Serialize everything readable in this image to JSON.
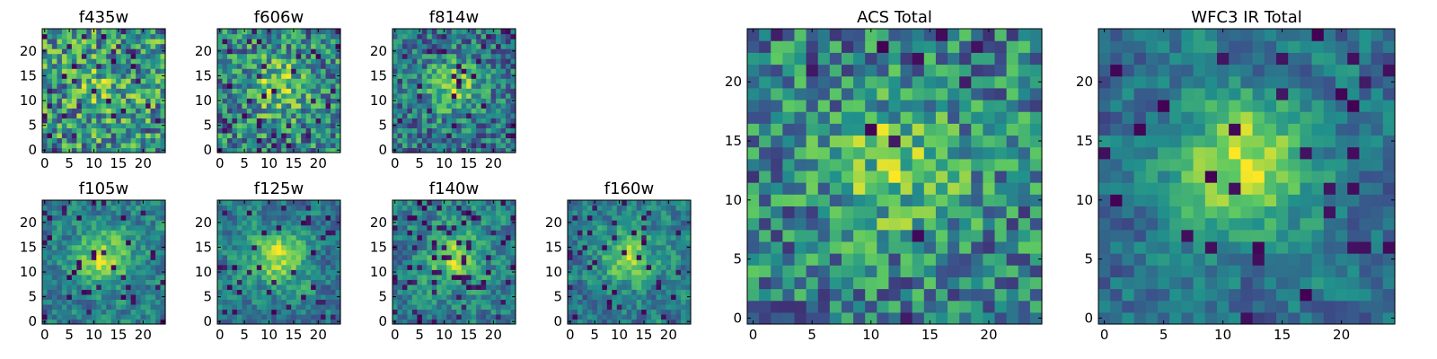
{
  "chart_data": [
    {
      "type": "heatmap",
      "title": "f435w",
      "xticks": [
        "0",
        "5",
        "10",
        "15",
        "20"
      ],
      "yticks": [
        "0",
        "5",
        "10",
        "15",
        "20"
      ],
      "xlim": [
        0,
        25
      ],
      "ylim": [
        0,
        25
      ],
      "grid_size": 25,
      "seed": 11,
      "blob": 0.15,
      "dark": 0.06,
      "smooth": 0
    },
    {
      "type": "heatmap",
      "title": "f606w",
      "xticks": [
        "0",
        "5",
        "10",
        "15",
        "20"
      ],
      "yticks": [
        "0",
        "5",
        "10",
        "15",
        "20"
      ],
      "xlim": [
        0,
        25
      ],
      "ylim": [
        0,
        25
      ],
      "grid_size": 25,
      "seed": 23,
      "blob": 0.35,
      "dark": 0.05,
      "smooth": 0
    },
    {
      "type": "heatmap",
      "title": "f814w",
      "xticks": [
        "0",
        "5",
        "10",
        "15",
        "20"
      ],
      "yticks": [
        "0",
        "5",
        "10",
        "15",
        "20"
      ],
      "xlim": [
        0,
        25
      ],
      "ylim": [
        0,
        25
      ],
      "grid_size": 25,
      "seed": 37,
      "blob": 0.5,
      "dark": 0.05,
      "smooth": 0
    },
    {
      "type": "heatmap",
      "title": "f105w",
      "xticks": [
        "0",
        "5",
        "10",
        "15",
        "20"
      ],
      "yticks": [
        "0",
        "5",
        "10",
        "15",
        "20"
      ],
      "xlim": [
        0,
        25
      ],
      "ylim": [
        0,
        25
      ],
      "grid_size": 25,
      "seed": 41,
      "blob": 0.55,
      "dark": 0.07,
      "smooth": 1
    },
    {
      "type": "heatmap",
      "title": "f125w",
      "xticks": [
        "0",
        "5",
        "10",
        "15",
        "20"
      ],
      "yticks": [
        "0",
        "5",
        "10",
        "15",
        "20"
      ],
      "xlim": [
        0,
        25
      ],
      "ylim": [
        0,
        25
      ],
      "grid_size": 25,
      "seed": 53,
      "blob": 0.55,
      "dark": 0.08,
      "smooth": 1
    },
    {
      "type": "heatmap",
      "title": "f140w",
      "xticks": [
        "0",
        "5",
        "10",
        "15",
        "20"
      ],
      "yticks": [
        "0",
        "5",
        "10",
        "15",
        "20"
      ],
      "xlim": [
        0,
        25
      ],
      "ylim": [
        0,
        25
      ],
      "grid_size": 25,
      "seed": 67,
      "blob": 0.45,
      "dark": 0.09,
      "smooth": 1
    },
    {
      "type": "heatmap",
      "title": "f160w",
      "xticks": [
        "0",
        "5",
        "10",
        "15",
        "20"
      ],
      "yticks": [
        "0",
        "5",
        "10",
        "15",
        "20"
      ],
      "xlim": [
        0,
        25
      ],
      "ylim": [
        0,
        25
      ],
      "grid_size": 25,
      "seed": 79,
      "blob": 0.5,
      "dark": 0.07,
      "smooth": 1
    },
    {
      "type": "heatmap",
      "title": "ACS Total",
      "xticks": [
        "0",
        "5",
        "10",
        "15",
        "20"
      ],
      "yticks": [
        "0",
        "5",
        "10",
        "15",
        "20"
      ],
      "xlim": [
        0,
        25
      ],
      "ylim": [
        0,
        25
      ],
      "grid_size": 25,
      "seed": 97,
      "blob": 0.35,
      "dark": 0.025,
      "smooth": 0
    },
    {
      "type": "heatmap",
      "title": "WFC3 IR Total",
      "xticks": [
        "0",
        "5",
        "10",
        "15",
        "20"
      ],
      "yticks": [
        "0",
        "5",
        "10",
        "15",
        "20"
      ],
      "xlim": [
        0,
        25
      ],
      "ylim": [
        0,
        25
      ],
      "grid_size": 25,
      "seed": 101,
      "blob": 0.75,
      "dark": 0.05,
      "smooth": 1
    }
  ],
  "colors": {
    "colormap": [
      "#440154",
      "#3b528b",
      "#21918c",
      "#5ec962",
      "#fde725"
    ],
    "axis": "#000000",
    "background": "#ffffff"
  }
}
